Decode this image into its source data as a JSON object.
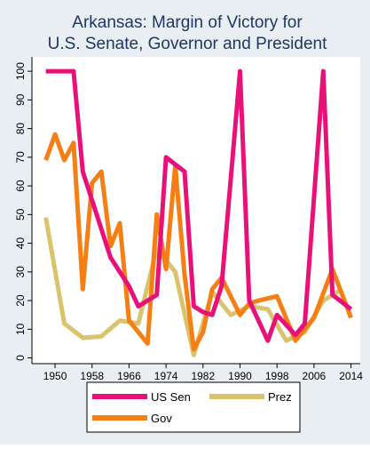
{
  "chart_data": {
    "type": "line",
    "title": "Arkansas: Margin of Victory for",
    "subtitle": "U.S. Senate, Governor and President",
    "xlabel": "",
    "ylabel": "",
    "xlim": [
      1945,
      2016
    ],
    "ylim": [
      -2,
      105
    ],
    "x_ticks": [
      1950,
      1958,
      1966,
      1974,
      1982,
      1990,
      1998,
      2006,
      2014
    ],
    "y_ticks": [
      0,
      10,
      20,
      30,
      40,
      50,
      60,
      70,
      80,
      90,
      100
    ],
    "grid": false,
    "legend_position": "bottom",
    "series": [
      {
        "name": "US Sen",
        "color": "#e8117a",
        "points": [
          [
            1948,
            100
          ],
          [
            1950,
            100
          ],
          [
            1954,
            100
          ],
          [
            1956,
            65
          ],
          [
            1960,
            45
          ],
          [
            1962,
            35
          ],
          [
            1966,
            25
          ],
          [
            1968,
            18
          ],
          [
            1972,
            22
          ],
          [
            1974,
            70
          ],
          [
            1978,
            65
          ],
          [
            1980,
            18
          ],
          [
            1982,
            16
          ],
          [
            1984,
            15
          ],
          [
            1986,
            25
          ],
          [
            1990,
            100
          ],
          [
            1992,
            20
          ],
          [
            1996,
            6
          ],
          [
            1998,
            15
          ],
          [
            2002,
            8
          ],
          [
            2004,
            12
          ],
          [
            2008,
            100
          ],
          [
            2010,
            22
          ],
          [
            2014,
            17
          ]
        ]
      },
      {
        "name": "Prez",
        "color": "#d9c36b",
        "points": [
          [
            1948,
            49
          ],
          [
            1952,
            12
          ],
          [
            1956,
            7
          ],
          [
            1960,
            7.5
          ],
          [
            1964,
            13
          ],
          [
            1968,
            12
          ],
          [
            1972,
            38
          ],
          [
            1976,
            30
          ],
          [
            1980,
            1
          ],
          [
            1984,
            23
          ],
          [
            1988,
            15
          ],
          [
            1992,
            18
          ],
          [
            1996,
            17
          ],
          [
            2000,
            6
          ],
          [
            2004,
            9
          ],
          [
            2008,
            20
          ],
          [
            2012,
            24
          ]
        ]
      },
      {
        "name": "Gov",
        "color": "#f57f14",
        "points": [
          [
            1948,
            69
          ],
          [
            1950,
            78
          ],
          [
            1952,
            69
          ],
          [
            1954,
            75
          ],
          [
            1956,
            24
          ],
          [
            1958,
            61
          ],
          [
            1960,
            65
          ],
          [
            1962,
            39
          ],
          [
            1964,
            47
          ],
          [
            1966,
            13
          ],
          [
            1968,
            9
          ],
          [
            1970,
            5
          ],
          [
            1972,
            50
          ],
          [
            1974,
            31
          ],
          [
            1976,
            67
          ],
          [
            1978,
            29
          ],
          [
            1980,
            3
          ],
          [
            1982,
            9
          ],
          [
            1984,
            24
          ],
          [
            1986,
            28
          ],
          [
            1990,
            15
          ],
          [
            1992,
            19
          ],
          [
            1994,
            20
          ],
          [
            1998,
            21.5
          ],
          [
            2002,
            6
          ],
          [
            2006,
            14
          ],
          [
            2010,
            31
          ],
          [
            2014,
            14
          ]
        ]
      }
    ]
  }
}
